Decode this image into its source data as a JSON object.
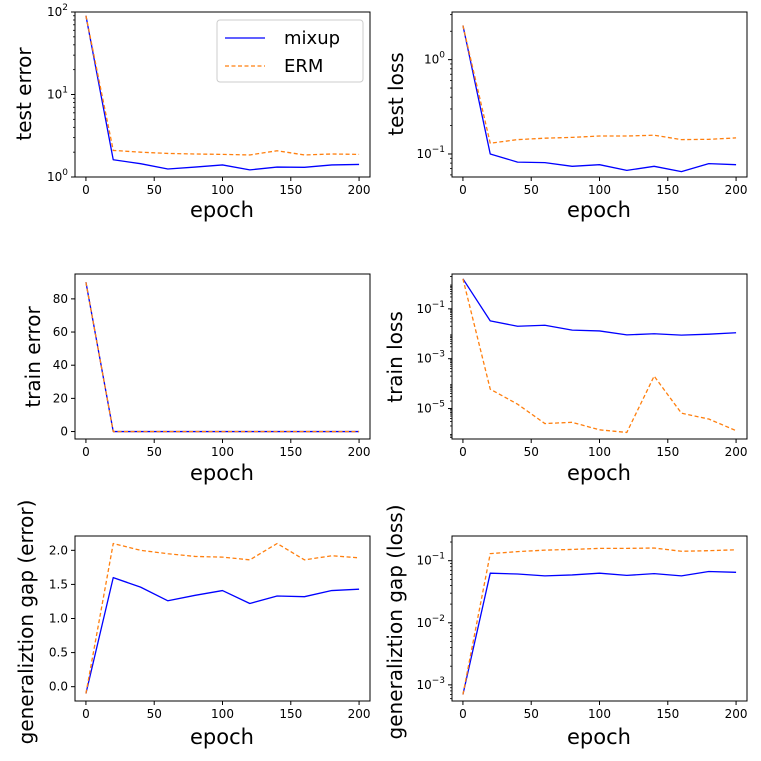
{
  "legend": {
    "entries": [
      {
        "name": "mixup",
        "color": "#0000ff",
        "style": "solid"
      },
      {
        "name": "ERM",
        "color": "#ff7f0e",
        "style": "dashed"
      }
    ],
    "placement": "top-right of first panel"
  },
  "chart_data": [
    {
      "type": "line",
      "title": "",
      "xlabel": "epoch",
      "ylabel": "test error",
      "yscale": "log",
      "xlim": [
        -8,
        208
      ],
      "ylim": [
        1,
        100
      ],
      "xticks": [
        0,
        50,
        100,
        150,
        200
      ],
      "yticks": [
        {
          "value": 1,
          "label": "10^0"
        },
        {
          "value": 10,
          "label": "10^1"
        },
        {
          "value": 100,
          "label": "10^2"
        }
      ],
      "x": [
        0,
        20,
        40,
        60,
        80,
        100,
        120,
        140,
        160,
        180,
        200
      ],
      "series": [
        {
          "name": "mixup",
          "color": "#0000ff",
          "style": "solid",
          "values": [
            90,
            1.62,
            1.45,
            1.25,
            1.32,
            1.4,
            1.22,
            1.32,
            1.31,
            1.4,
            1.42
          ]
        },
        {
          "name": "ERM",
          "color": "#ff7f0e",
          "style": "dashed",
          "values": [
            90,
            2.1,
            2.0,
            1.93,
            1.9,
            1.88,
            1.85,
            2.08,
            1.85,
            1.9,
            1.88
          ]
        }
      ]
    },
    {
      "type": "line",
      "title": "",
      "xlabel": "epoch",
      "ylabel": "test loss",
      "yscale": "log",
      "xlim": [
        -8,
        208
      ],
      "ylim": [
        0.057,
        3.2
      ],
      "xticks": [
        0,
        50,
        100,
        150,
        200
      ],
      "yticks": [
        {
          "value": 0.1,
          "label": "10^-1"
        },
        {
          "value": 1,
          "label": "10^0"
        }
      ],
      "x": [
        0,
        20,
        40,
        60,
        80,
        100,
        120,
        140,
        160,
        180,
        200
      ],
      "series": [
        {
          "name": "mixup",
          "color": "#0000ff",
          "style": "solid",
          "values": [
            2.3,
            0.1,
            0.082,
            0.081,
            0.074,
            0.077,
            0.067,
            0.074,
            0.065,
            0.079,
            0.077
          ]
        },
        {
          "name": "ERM",
          "color": "#ff7f0e",
          "style": "dashed",
          "values": [
            2.3,
            0.13,
            0.142,
            0.147,
            0.15,
            0.155,
            0.155,
            0.158,
            0.142,
            0.143,
            0.148
          ]
        }
      ]
    },
    {
      "type": "line",
      "title": "",
      "xlabel": "epoch",
      "ylabel": "train error",
      "yscale": "linear",
      "xlim": [
        -8,
        208
      ],
      "ylim": [
        -4.5,
        95
      ],
      "xticks": [
        0,
        50,
        100,
        150,
        200
      ],
      "yticks": [
        {
          "value": 0,
          "label": "0"
        },
        {
          "value": 20,
          "label": "20"
        },
        {
          "value": 40,
          "label": "40"
        },
        {
          "value": 60,
          "label": "60"
        },
        {
          "value": 80,
          "label": "80"
        }
      ],
      "x": [
        0,
        20,
        40,
        60,
        80,
        100,
        120,
        140,
        160,
        180,
        200
      ],
      "series": [
        {
          "name": "mixup",
          "color": "#0000ff",
          "style": "solid",
          "values": [
            90,
            0,
            0,
            0,
            0,
            0,
            0,
            0,
            0,
            0,
            0
          ]
        },
        {
          "name": "ERM",
          "color": "#ff7f0e",
          "style": "dashed",
          "values": [
            90,
            0,
            0,
            0,
            0,
            0,
            0,
            0,
            0,
            0,
            0
          ]
        }
      ]
    },
    {
      "type": "line",
      "title": "",
      "xlabel": "epoch",
      "ylabel": "train loss",
      "yscale": "log",
      "xlim": [
        -8,
        208
      ],
      "ylim": [
        6e-07,
        2.5
      ],
      "xticks": [
        0,
        50,
        100,
        150,
        200
      ],
      "yticks": [
        {
          "value": 0.1,
          "label": "10^-1"
        },
        {
          "value": 0.001,
          "label": "10^-3"
        },
        {
          "value": 1e-05,
          "label": "10^-5"
        }
      ],
      "x": [
        0,
        20,
        40,
        60,
        80,
        100,
        120,
        140,
        160,
        180,
        200
      ],
      "series": [
        {
          "name": "mixup",
          "color": "#0000ff",
          "style": "solid",
          "values": [
            1.6,
            0.033,
            0.02,
            0.022,
            0.014,
            0.013,
            0.009,
            0.01,
            0.0088,
            0.0096,
            0.011
          ]
        },
        {
          "name": "ERM",
          "color": "#ff7f0e",
          "style": "dashed",
          "values": [
            1.6,
            6e-05,
            1.5e-05,
            2.5e-06,
            2.8e-06,
            1.4e-06,
            1.1e-06,
            0.0002,
            6.5e-06,
            3.8e-06,
            1.3e-06
          ]
        }
      ]
    },
    {
      "type": "line",
      "title": "",
      "xlabel": "epoch",
      "ylabel": "generaliztion gap (error)",
      "yscale": "linear",
      "xlim": [
        -8,
        208
      ],
      "ylim": [
        -0.21,
        2.21
      ],
      "xticks": [
        0,
        50,
        100,
        150,
        200
      ],
      "yticks": [
        {
          "value": 0,
          "label": "0.0"
        },
        {
          "value": 0.5,
          "label": "0.5"
        },
        {
          "value": 1,
          "label": "1.0"
        },
        {
          "value": 1.5,
          "label": "1.5"
        },
        {
          "value": 2,
          "label": "2.0"
        }
      ],
      "x": [
        0,
        20,
        40,
        60,
        80,
        100,
        120,
        140,
        160,
        180,
        200
      ],
      "series": [
        {
          "name": "mixup",
          "color": "#0000ff",
          "style": "solid",
          "values": [
            -0.1,
            1.6,
            1.46,
            1.26,
            1.34,
            1.41,
            1.22,
            1.33,
            1.32,
            1.41,
            1.43
          ]
        },
        {
          "name": "ERM",
          "color": "#ff7f0e",
          "style": "dashed",
          "values": [
            -0.1,
            2.1,
            2.0,
            1.95,
            1.91,
            1.9,
            1.86,
            2.1,
            1.86,
            1.92,
            1.89
          ]
        }
      ]
    },
    {
      "type": "line",
      "title": "",
      "xlabel": "epoch",
      "ylabel": "generaliztion gap (loss)",
      "yscale": "log",
      "xlim": [
        -8,
        208
      ],
      "ylim": [
        0.00055,
        0.25
      ],
      "xticks": [
        0,
        50,
        100,
        150,
        200
      ],
      "yticks": [
        {
          "value": 0.001,
          "label": "10^-3"
        },
        {
          "value": 0.01,
          "label": "10^-2"
        },
        {
          "value": 0.1,
          "label": "10^-1"
        }
      ],
      "x": [
        0,
        20,
        40,
        60,
        80,
        100,
        120,
        140,
        160,
        180,
        200
      ],
      "series": [
        {
          "name": "mixup",
          "color": "#0000ff",
          "style": "solid",
          "values": [
            0.0007,
            0.063,
            0.061,
            0.057,
            0.059,
            0.063,
            0.058,
            0.062,
            0.057,
            0.067,
            0.065
          ]
        },
        {
          "name": "ERM",
          "color": "#ff7f0e",
          "style": "dashed",
          "values": [
            0.0007,
            0.13,
            0.14,
            0.148,
            0.152,
            0.158,
            0.158,
            0.16,
            0.142,
            0.145,
            0.15
          ]
        }
      ]
    }
  ]
}
